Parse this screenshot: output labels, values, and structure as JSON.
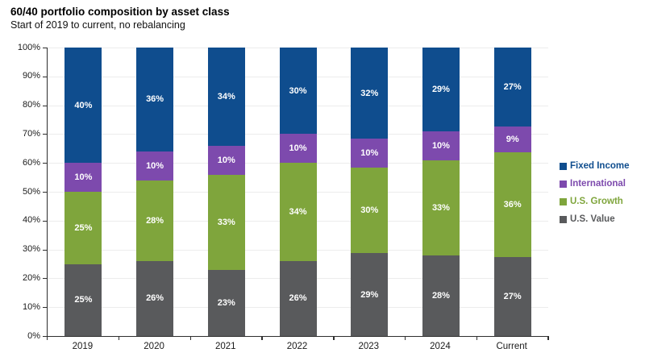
{
  "header": {
    "title": "60/40 portfolio composition by asset class",
    "subtitle": "Start of 2019 to current, no rebalancing"
  },
  "chart_data": {
    "type": "bar",
    "stacked": true,
    "title": "60/40 portfolio composition by asset class",
    "subtitle": "Start of 2019 to current, no rebalancing",
    "xlabel": "",
    "ylabel": "",
    "ylim": [
      0,
      100
    ],
    "grid": "horizontal-light-gray",
    "y_tick_values": [
      0,
      10,
      20,
      30,
      40,
      50,
      60,
      70,
      80,
      90,
      100
    ],
    "y_tick_labels": [
      "0%",
      "10%",
      "20%",
      "30%",
      "40%",
      "50%",
      "60%",
      "70%",
      "80%",
      "90%",
      "100%"
    ],
    "categories": [
      "2019",
      "2020",
      "2021",
      "2022",
      "2023",
      "2024",
      "Current"
    ],
    "series": [
      {
        "name": "U.S. Value",
        "color": "#595a5c",
        "values": [
          25,
          26,
          23,
          26,
          29,
          28,
          27
        ]
      },
      {
        "name": "U.S. Growth",
        "color": "#7fa53c",
        "values": [
          25,
          28,
          33,
          34,
          30,
          33,
          36
        ]
      },
      {
        "name": "International",
        "color": "#7d4aad",
        "values": [
          10,
          10,
          10,
          10,
          10,
          10,
          9
        ]
      },
      {
        "name": "Fixed Income",
        "color": "#0f4d8e",
        "values": [
          40,
          36,
          34,
          30,
          32,
          29,
          27
        ]
      }
    ],
    "data_label_format": "{value}%",
    "legend": {
      "position": "right",
      "order": [
        "Fixed Income",
        "International",
        "U.S. Growth",
        "U.S. Value"
      ]
    },
    "axis_color": "#2e2e2e",
    "gridline_color": "#ececec",
    "data_label_color": "#ffffff"
  }
}
